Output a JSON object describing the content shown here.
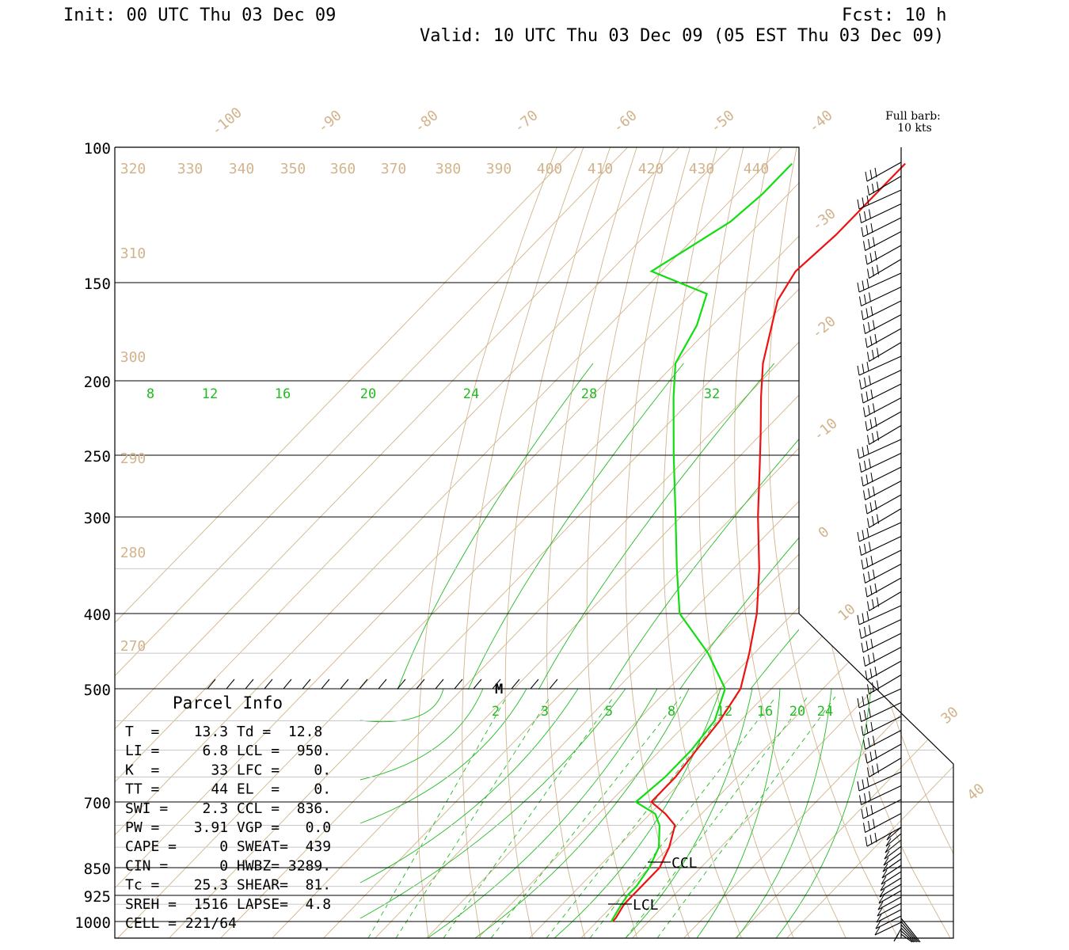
{
  "header": {
    "init": "Init: 00 UTC Thu 03 Dec 09",
    "fcst": "Fcst:   10 h",
    "valid": "Valid: 10 UTC Thu 03 Dec 09 (05 EST Thu 03 Dec 09)"
  },
  "barb_note": {
    "line1": "Full barb:",
    "line2": "10 kts"
  },
  "colors": {
    "temperature": "#ee1111",
    "dewpoint": "#11dd11",
    "isotherm": "#d2b48c",
    "mixing_ratio": "#22bb22"
  },
  "chart_data": {
    "type": "line",
    "title": "",
    "xlabel": "",
    "ylabel": "",
    "pressure_levels_labeled": [
      "100",
      "150",
      "200",
      "250",
      "300",
      "400",
      "500",
      "700",
      "850",
      "925",
      "1000"
    ],
    "isotherm_labels": [
      "-100",
      "-90",
      "-80",
      "-70",
      "-60",
      "-50",
      "-40",
      "-30",
      "-20",
      "-10",
      "0",
      "10",
      "30",
      "40"
    ],
    "theta_labels": [
      "320",
      "330",
      "340",
      "350",
      "360",
      "370",
      "380",
      "390",
      "400",
      "410",
      "420",
      "430",
      "440",
      "310",
      "300",
      "290",
      "280",
      "270"
    ],
    "mixing_ratio_upper_labels": [
      "8",
      "12",
      "16",
      "20",
      "24",
      "28",
      "32"
    ],
    "mixing_ratio_lower_labels": [
      "2",
      "3",
      "5",
      "8",
      "12",
      "16",
      "20",
      "24"
    ],
    "series": [
      {
        "name": "Temperature",
        "values": [
          [
            105,
            -73
          ],
          [
            115,
            -73
          ],
          [
            130,
            -73
          ],
          [
            145,
            -74
          ],
          [
            158,
            -72
          ],
          [
            175,
            -67
          ],
          [
            190,
            -63
          ],
          [
            210,
            -57
          ],
          [
            235,
            -50
          ],
          [
            255,
            -45
          ],
          [
            300,
            -35
          ],
          [
            350,
            -25
          ],
          [
            400,
            -17
          ],
          [
            450,
            -11
          ],
          [
            500,
            -6
          ],
          [
            550,
            -4
          ],
          [
            600,
            -3
          ],
          [
            650,
            -2
          ],
          [
            700,
            -2
          ],
          [
            725,
            3
          ],
          [
            750,
            7
          ],
          [
            800,
            10
          ],
          [
            850,
            12
          ],
          [
            900,
            12
          ],
          [
            925,
            12
          ],
          [
            950,
            12
          ],
          [
            990,
            13
          ],
          [
            1000,
            13
          ]
        ]
      },
      {
        "name": "Dewpoint",
        "values": [
          [
            105,
            -95
          ],
          [
            115,
            -95
          ],
          [
            125,
            -96
          ],
          [
            145,
            -102
          ],
          [
            155,
            -87
          ],
          [
            170,
            -83
          ],
          [
            190,
            -80
          ],
          [
            210,
            -74
          ],
          [
            250,
            -63
          ],
          [
            300,
            -51
          ],
          [
            350,
            -41
          ],
          [
            400,
            -32
          ],
          [
            450,
            -19
          ],
          [
            500,
            -9
          ],
          [
            550,
            -5
          ],
          [
            600,
            -4
          ],
          [
            650,
            -4
          ],
          [
            700,
            -5
          ],
          [
            725,
            1
          ],
          [
            750,
            4
          ],
          [
            800,
            8
          ],
          [
            850,
            10
          ],
          [
            900,
            11
          ],
          [
            925,
            11
          ],
          [
            950,
            11.5
          ],
          [
            990,
            12.5
          ],
          [
            1000,
            12.8
          ]
        ]
      }
    ],
    "markers": {
      "ccl": "CCL",
      "lcl": "LCL",
      "mid": "M"
    }
  },
  "parcel_info": {
    "title": "Parcel Info",
    "lines": [
      "T  =    13.3 Td =  12.8",
      "LI =     6.8 LCL =  950.",
      "K  =      33 LFC =    0.",
      "TT =      44 EL  =    0.",
      "SWI =    2.3 CCL =  836.",
      "PW =    3.91 VGP =   0.0",
      "CAPE =     0 SWEAT=  439",
      "CIN =      0 HWBZ= 3289.",
      "Tc =    25.3 SHEAR=  81.",
      "SREH =  1516 LAPSE=  4.8",
      "CELL = 221/64"
    ]
  }
}
